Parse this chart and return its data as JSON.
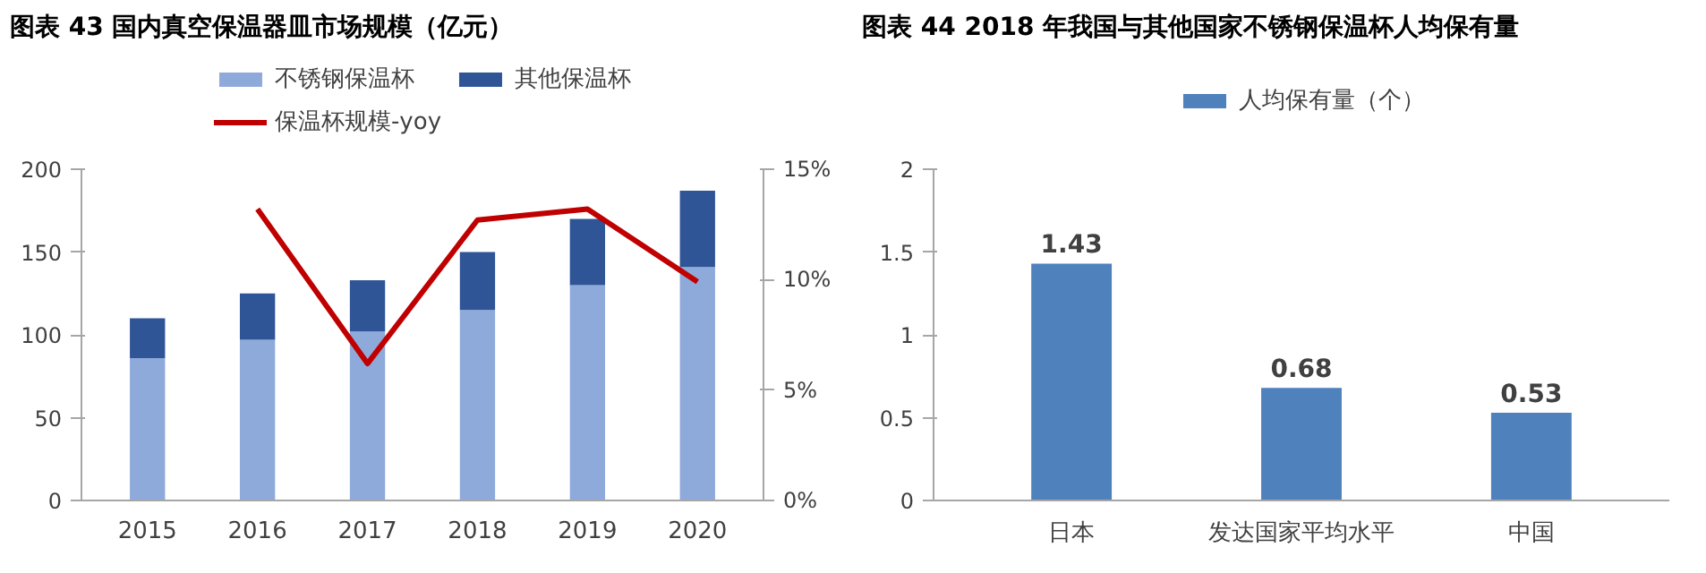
{
  "chart_data": [
    {
      "type": "bar",
      "title": "图表 43 国内真空保温器皿市场规模（亿元）",
      "categories": [
        "2015",
        "2016",
        "2017",
        "2018",
        "2019",
        "2020"
      ],
      "stacked": true,
      "legend": "top",
      "ylim": [
        0,
        200
      ],
      "yticks": [
        0,
        50,
        100,
        150,
        200
      ],
      "y2lim": [
        0,
        15
      ],
      "y2ticks": [
        {
          "value": 0,
          "label": "0%"
        },
        {
          "value": 5,
          "label": "5%"
        },
        {
          "value": 10,
          "label": "10%"
        },
        {
          "value": 15,
          "label": "15%"
        }
      ],
      "series": [
        {
          "name": "不锈钢保温杯",
          "color": "#8eaadb",
          "values": [
            86,
            97,
            102,
            115,
            130,
            141
          ]
        },
        {
          "name": "其他保温杯",
          "color": "#2f5597",
          "values": [
            24,
            28,
            31,
            35,
            40,
            46
          ]
        },
        {
          "name": "保温杯规模-yoy",
          "type": "line",
          "axis": "y2",
          "color": "#c00000",
          "values": [
            null,
            13.2,
            6.2,
            12.7,
            13.2,
            9.9
          ]
        }
      ]
    },
    {
      "type": "bar",
      "title": "图表 44 2018 年我国与其他国家不锈钢保温杯人均保有量",
      "categories": [
        "日本",
        "发达国家平均水平",
        "中国"
      ],
      "legend": "top",
      "data_labels": true,
      "ylim": [
        0,
        2
      ],
      "yticks": [
        0,
        0.5,
        1,
        1.5,
        2
      ],
      "series": [
        {
          "name": "人均保有量（个）",
          "color": "#4f81bd",
          "values": [
            1.43,
            0.68,
            0.53
          ]
        }
      ]
    }
  ]
}
